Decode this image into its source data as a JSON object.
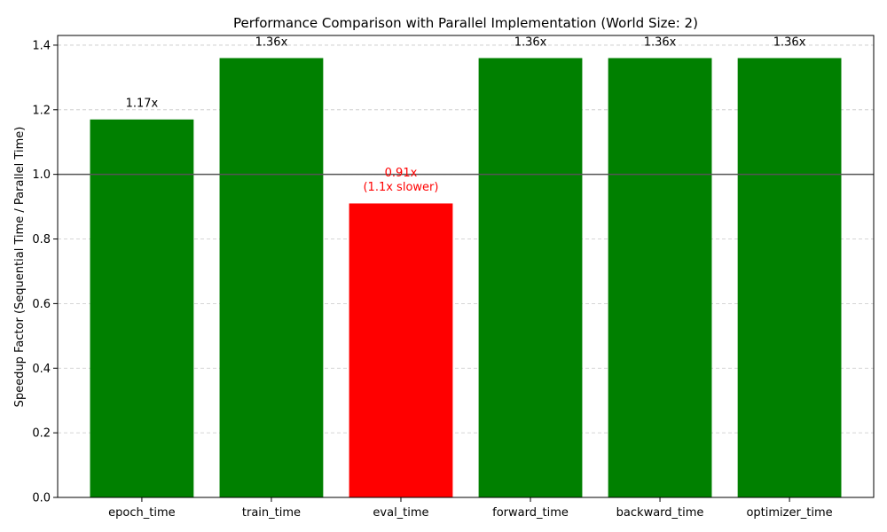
{
  "chart_data": {
    "type": "bar",
    "title": "Performance Comparison with Parallel Implementation (World Size: 2)",
    "xlabel": "",
    "ylabel": "Speedup Factor (Sequential Time / Parallel Time)",
    "ylim": [
      0,
      1.43
    ],
    "yticks": [
      "0.0",
      "0.2",
      "0.4",
      "0.6",
      "0.8",
      "1.0",
      "1.2",
      "1.4"
    ],
    "grid": "y-dashed",
    "reference_line": 1.0,
    "categories": [
      "epoch_time",
      "train_time",
      "eval_time",
      "forward_time",
      "backward_time",
      "optimizer_time"
    ],
    "values": [
      1.17,
      1.36,
      0.91,
      1.36,
      1.36,
      1.36
    ],
    "labels": [
      "1.17x",
      "1.36x",
      "0.91x\n(1.1x slower)",
      "1.36x",
      "1.36x",
      "1.36x"
    ],
    "colors": {
      "faster": "#008000",
      "slower": "#ff0000",
      "faster_label": "#000000",
      "slower_label": "#ff0000",
      "grid": "#c8c8c8",
      "reference": "#555555"
    }
  }
}
